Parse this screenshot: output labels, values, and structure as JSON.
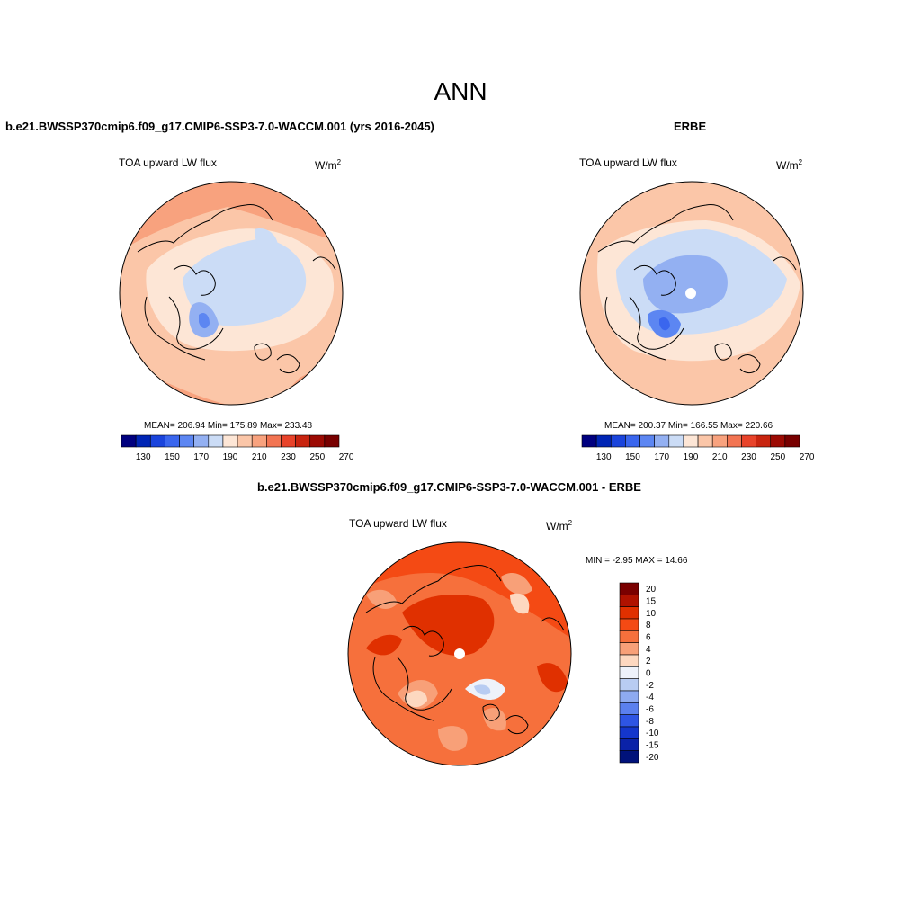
{
  "title": "ANN",
  "units_base": "W/m",
  "units_exp": "2",
  "variable": "TOA upward LW flux",
  "panels": {
    "model": {
      "title": "b.e21.BWSSP370cmip6.f09_g17.CMIP6-SSP3-7.0-WACCM.001 (yrs 2016-2045)",
      "stats": "MEAN= 206.94  Min= 175.89  Max= 233.48",
      "bar_colors": [
        "#00007f",
        "#0025b5",
        "#1a44dc",
        "#3a66ee",
        "#5c86f2",
        "#93b0f2",
        "#cbdcf6",
        "#fde6d6",
        "#fbc6a8",
        "#f8a27e",
        "#f27452",
        "#e8432a",
        "#c8240f",
        "#9c0a03",
        "#780000"
      ],
      "tick_labels": [
        "130",
        "150",
        "170",
        "190",
        "210",
        "230",
        "250",
        "270"
      ]
    },
    "obs": {
      "title": "ERBE",
      "stats": "MEAN= 200.37  Min= 166.55  Max= 220.66",
      "bar_colors": [
        "#00007f",
        "#0025b5",
        "#1a44dc",
        "#3a66ee",
        "#5c86f2",
        "#93b0f2",
        "#cbdcf6",
        "#fde6d6",
        "#fbc6a8",
        "#f8a27e",
        "#f27452",
        "#e8432a",
        "#c8240f",
        "#9c0a03",
        "#780000"
      ],
      "tick_labels": [
        "130",
        "150",
        "170",
        "190",
        "210",
        "230",
        "250",
        "270"
      ]
    },
    "diff": {
      "title": "b.e21.BWSSP370cmip6.f09_g17.CMIP6-SSP3-7.0-WACCM.001 - ERBE",
      "stats": "MIN =  -2.95 MAX =  14.66",
      "bar_colors": [
        "#7a0000",
        "#b01200",
        "#e03000",
        "#f44a14",
        "#f6703c",
        "#f8a078",
        "#fdd8c0",
        "#eef2fa",
        "#b8ccf2",
        "#8eaaf0",
        "#5b80ee",
        "#2e55e4",
        "#1436cc",
        "#0a22a8",
        "#00127a"
      ],
      "scale_labels": [
        "20",
        "15",
        "10",
        "8",
        "6",
        "4",
        "2",
        "0",
        "-2",
        "-4",
        "-6",
        "-8",
        "-10",
        "-15",
        "-20"
      ]
    }
  }
}
